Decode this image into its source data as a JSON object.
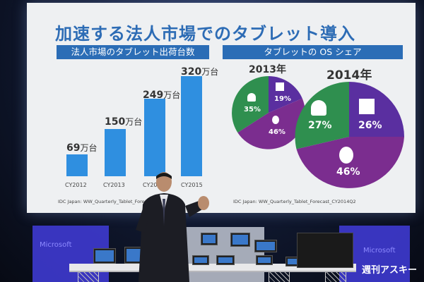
{
  "slide": {
    "title": "加速する法人市場でのタブレット導入",
    "left_heading": "法人市場のタブレット出荷台数",
    "right_heading": "タブレットの OS シェア",
    "source_left": "IDC Japan: WW_Quarterly_Tablet_Forecast",
    "source_right": "IDC Japan: WW_Quarterly_Tablet_Forecast_CY2014Q2"
  },
  "bars": [
    {
      "value": "69",
      "unit": "万台",
      "label": "CY2012"
    },
    {
      "value": "150",
      "unit": "万台",
      "label": "CY2013"
    },
    {
      "value": "249",
      "unit": "万台",
      "label": "CY2014"
    },
    {
      "value": "320",
      "unit": "万台",
      "label": "CY2015"
    }
  ],
  "bar_values": [
    69,
    150,
    249,
    320
  ],
  "pie_2013": {
    "year": "2013年",
    "android": "35%",
    "windows": "19%",
    "apple": "46%"
  },
  "pie_2014": {
    "year": "2014年",
    "android": "27%",
    "windows": "26%",
    "apple": "46%"
  },
  "colors": {
    "android": "#2f8f4f",
    "windows": "#5a2fa0",
    "apple": "#7b2d8f",
    "bar": "#2f8fe0",
    "band": "#2b6db6"
  },
  "icons": {
    "android": "android-icon",
    "windows": "windows-icon",
    "apple": "apple-icon"
  },
  "stage": {
    "watermark": "週刊アスキー",
    "panel_left_text": "Microsoft",
    "panel_right_text": "Microsoft"
  }
}
